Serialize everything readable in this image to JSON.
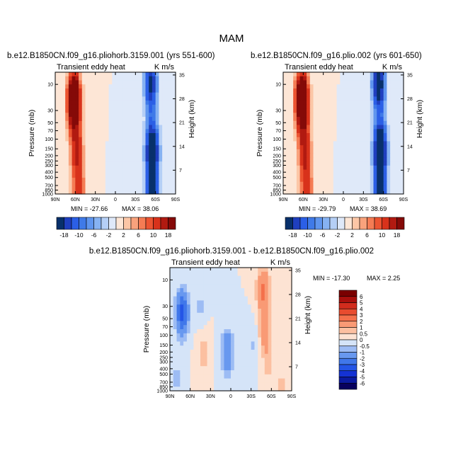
{
  "figure": {
    "title": "MAM"
  },
  "chart_data": [
    {
      "type": "heatmap",
      "title": "b.e12.B1850CN.f09_g16.pliohorb.3159.001 (yrs 551-600)",
      "left_label": "Transient eddy heat",
      "right_label": "K m/s",
      "xlabel": "",
      "ylabel": "Pressure (mb)",
      "ylabel_right": "Height (km)",
      "x_ticks": [
        "90N",
        "60N",
        "30N",
        "0",
        "30S",
        "60S",
        "90S"
      ],
      "y_ticks": [
        "10",
        "30",
        "50",
        "70",
        "100",
        "150",
        "200",
        "250",
        "300",
        "400",
        "500",
        "700",
        "850",
        "1000"
      ],
      "y_ticks_right": [
        "35",
        "28",
        "21",
        "14",
        "7"
      ],
      "min_label": "MIN = -27.66",
      "max_label": "MAX = 38.06",
      "colorbar_labels": [
        "-18",
        "-10",
        "-6",
        "-2",
        "2",
        "6",
        "10",
        "18"
      ],
      "features": [
        {
          "lat": 62,
          "p": 20,
          "value": 38.06
        },
        {
          "lat": 58,
          "p": 150,
          "value": 14
        },
        {
          "lat": 55,
          "p": 850,
          "value": 12
        },
        {
          "lat": -53,
          "p": 10,
          "value": -20
        },
        {
          "lat": -55,
          "p": 150,
          "value": -27.66
        },
        {
          "lat": -55,
          "p": 900,
          "value": -22
        },
        {
          "lat": -5,
          "p": 50,
          "value": -2
        },
        {
          "lat": 25,
          "p": 20,
          "value": 2
        }
      ]
    },
    {
      "type": "heatmap",
      "title": "b.e12.B1850CN.f09_g16.plio.002 (yrs 601-650)",
      "left_label": "Transient eddy heat",
      "right_label": "K m/s",
      "xlabel": "",
      "ylabel": "Pressure (mb)",
      "ylabel_right": "Height (km)",
      "x_ticks": [
        "90N",
        "60N",
        "30N",
        "0",
        "30S",
        "60S",
        "90S"
      ],
      "y_ticks": [
        "10",
        "30",
        "50",
        "70",
        "100",
        "150",
        "200",
        "250",
        "300",
        "400",
        "500",
        "700",
        "850",
        "1000"
      ],
      "y_ticks_right": [
        "35",
        "28",
        "21",
        "14",
        "7"
      ],
      "min_label": "MIN = -29.79",
      "max_label": "MAX = 38.69",
      "colorbar_labels": [
        "-18",
        "-10",
        "-6",
        "-2",
        "2",
        "6",
        "10",
        "18"
      ],
      "features": [
        {
          "lat": 62,
          "p": 20,
          "value": 38.69
        },
        {
          "lat": 58,
          "p": 150,
          "value": 15
        },
        {
          "lat": 55,
          "p": 850,
          "value": 12
        },
        {
          "lat": -53,
          "p": 10,
          "value": -24
        },
        {
          "lat": -55,
          "p": 150,
          "value": -29.79
        },
        {
          "lat": -55,
          "p": 900,
          "value": -22
        },
        {
          "lat": -5,
          "p": 50,
          "value": -2
        },
        {
          "lat": 25,
          "p": 20,
          "value": 2
        }
      ]
    },
    {
      "type": "heatmap",
      "title": "b.e12.B1850CN.f09_g16.pliohorb.3159.001 - b.e12.B1850CN.f09_g16.plio.002",
      "left_label": "Transient eddy heat",
      "right_label": "K m/s",
      "xlabel": "",
      "ylabel": "Pressure (mb)",
      "ylabel_right": "Height (km)",
      "x_ticks": [
        "90N",
        "60N",
        "30N",
        "0",
        "30S",
        "60S",
        "90S"
      ],
      "y_ticks": [
        "10",
        "30",
        "50",
        "70",
        "100",
        "150",
        "200",
        "250",
        "300",
        "400",
        "500",
        "700",
        "850",
        "1000"
      ],
      "y_ticks_right": [
        "35",
        "28",
        "21",
        "14",
        "7"
      ],
      "min_label": "MIN = -17.30",
      "max_label": "MAX =   2.25",
      "colorbar_labels": [
        "6",
        "5",
        "4",
        "3",
        "2",
        "1",
        "0.5",
        "0",
        "-0.5",
        "-1",
        "-2",
        "-3",
        "-4",
        "-5",
        "-6"
      ],
      "features": [
        {
          "lat": 72,
          "p": 40,
          "value": -3.5
        },
        {
          "lat": 45,
          "p": 30,
          "value": -0.6
        },
        {
          "lat": 40,
          "p": 200,
          "value": 0.8
        },
        {
          "lat": 5,
          "p": 200,
          "value": -2
        },
        {
          "lat": -48,
          "p": 15,
          "value": 2.25
        },
        {
          "lat": -50,
          "p": 80,
          "value": 1.5
        },
        {
          "lat": -55,
          "p": 300,
          "value": 0.7
        },
        {
          "lat": -35,
          "p": 150,
          "value": -0.6
        },
        {
          "lat": 80,
          "p": 600,
          "value": -0.6
        },
        {
          "lat": -75,
          "p": 850,
          "value": 0.6
        }
      ]
    }
  ],
  "colors": {
    "sym_palette": [
      "#08306b",
      "#1f3fbf",
      "#2b5fe6",
      "#3f7ae8",
      "#5f95ee",
      "#86b2f2",
      "#b5cff6",
      "#dfe9f9",
      "#fde6d6",
      "#fcc6a6",
      "#f9a27c",
      "#f57c54",
      "#ec5431",
      "#d8321b",
      "#b11a11",
      "#850a08"
    ],
    "diff_palette": [
      "#08005e",
      "#0b1aa0",
      "#1432d4",
      "#2455e6",
      "#4077ea",
      "#6898ef",
      "#9dbcf4",
      "#d5e4f8",
      "#fde3d3",
      "#fcc0a1",
      "#f99a75",
      "#f4704b",
      "#e84c2f",
      "#d22c1d",
      "#a90f0c",
      "#7a0000"
    ]
  }
}
